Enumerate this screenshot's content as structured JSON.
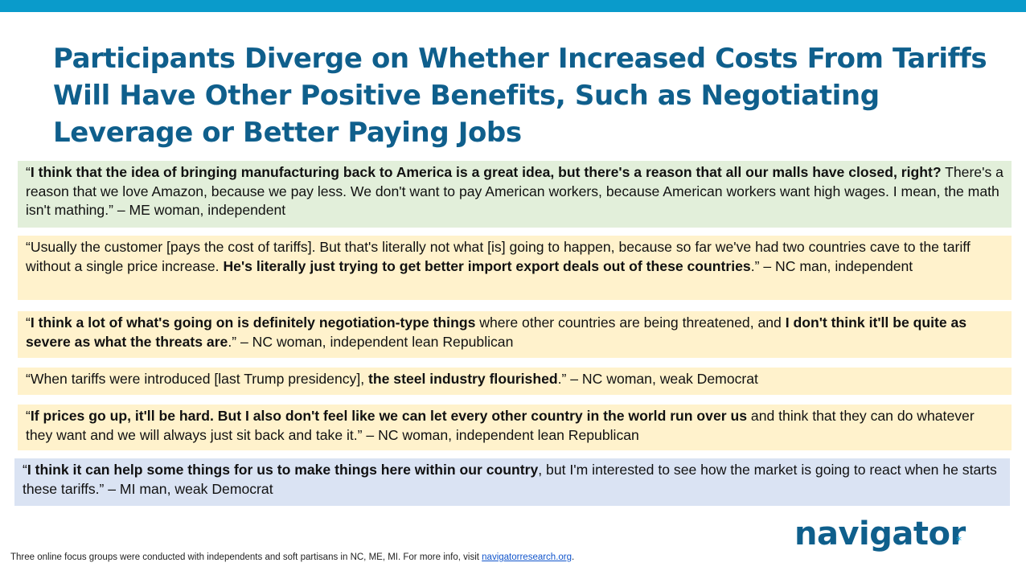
{
  "slide": {
    "title": "Participants Diverge on Whether Increased Costs From Tariffs Will Have Other Positive Benefits, Such as Negotiating Leverage or Better Paying Jobs"
  },
  "colors": {
    "top_bar": "#0a9bcb",
    "title": "#0f5f8c",
    "quote_green": "#e2efda",
    "quote_yellow": "#fff2cc",
    "quote_blue": "#dae3f3"
  },
  "quotes": [
    {
      "open": "“",
      "bold1": "I think that the idea of bringing manufacturing back to America is a great idea, but there's a reason that all our malls have closed, right?",
      "rest": " There's a reason that we love Amazon, because we pay less. We don't want to pay American workers, because American workers want high wages. I mean, the math isn't mathing.” – ME woman, independent"
    },
    {
      "pre": "“Usually the customer [pays the cost of tariffs]. But that's literally not what [is] going to happen, because so far we've had two countries cave to the tariff without a single price increase. ",
      "bold1": "He's literally just trying to get better import export deals out of these countries",
      "rest": ".” – NC man, independent"
    },
    {
      "open": "“",
      "bold1": "I think a lot of what's going on is definitely negotiation-type things",
      "mid": " where other countries are being threatened, and ",
      "bold2": "I don't think it'll be quite as severe as what the threats are",
      "rest": ".” – NC woman, independent lean Republican"
    },
    {
      "pre": "“When tariffs were introduced [last Trump presidency], ",
      "bold1": "the steel industry flourished",
      "rest": ".” – NC woman, weak Democrat"
    },
    {
      "open": "“",
      "bold1": "If prices go up, it'll be hard. But I also don't feel like we can let every other country in the world run over us",
      "rest": " and think that they can do whatever they want and we will always just sit back and take it.” – NC woman, independent lean Republican"
    },
    {
      "open": "“",
      "bold1": "I think it can help some things for us to make things here within our country",
      "rest": ", but I'm interested to see how the market is going to react when he starts these tariffs.” – MI man, weak Democrat"
    }
  ],
  "logo": {
    "text": "navigator",
    "mark": "*"
  },
  "footnote": {
    "text": "Three online focus groups were conducted with independents and soft partisans in NC, ME, MI. For more info, visit ",
    "link_text": "navigatorresearch.org",
    "end": "."
  }
}
